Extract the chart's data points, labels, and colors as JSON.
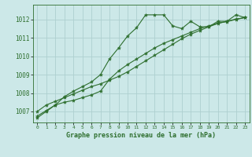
{
  "title": "Graphe pression niveau de la mer (hPa)",
  "bg_color": "#cce8e8",
  "grid_color": "#aed0d0",
  "line_color": "#2d6e2d",
  "marker_color": "#2d6e2d",
  "xlim": [
    -0.5,
    23.5
  ],
  "ylim": [
    1006.4,
    1012.8
  ],
  "xtick_labels": [
    "0",
    "1",
    "2",
    "3",
    "4",
    "5",
    "6",
    "7",
    "8",
    "9",
    "10",
    "11",
    "12",
    "13",
    "14",
    "15",
    "16",
    "17",
    "18",
    "19",
    "20",
    "21",
    "22",
    "23"
  ],
  "yticks": [
    1007,
    1008,
    1009,
    1010,
    1011,
    1012
  ],
  "series": [
    [
      1006.65,
      1007.0,
      1007.35,
      1007.5,
      1007.6,
      1007.75,
      1007.9,
      1008.1,
      1008.75,
      1009.2,
      1009.55,
      1009.85,
      1010.15,
      1010.45,
      1010.7,
      1010.9,
      1011.1,
      1011.3,
      1011.5,
      1011.65,
      1011.8,
      1011.88,
      1012.0,
      1012.1
    ],
    [
      1007.0,
      1007.35,
      1007.55,
      1007.75,
      1007.95,
      1008.15,
      1008.35,
      1008.5,
      1008.7,
      1008.9,
      1009.15,
      1009.45,
      1009.75,
      1010.05,
      1010.35,
      1010.65,
      1010.95,
      1011.2,
      1011.4,
      1011.6,
      1011.78,
      1011.9,
      1012.02,
      1012.1
    ],
    [
      1006.75,
      1007.05,
      1007.35,
      1007.8,
      1008.1,
      1008.35,
      1008.6,
      1009.0,
      1009.85,
      1010.45,
      1011.1,
      1011.55,
      1012.25,
      1012.25,
      1012.25,
      1011.65,
      1011.5,
      1011.9,
      1011.6,
      1011.6,
      1011.9,
      1011.9,
      1012.25,
      1012.1
    ]
  ]
}
